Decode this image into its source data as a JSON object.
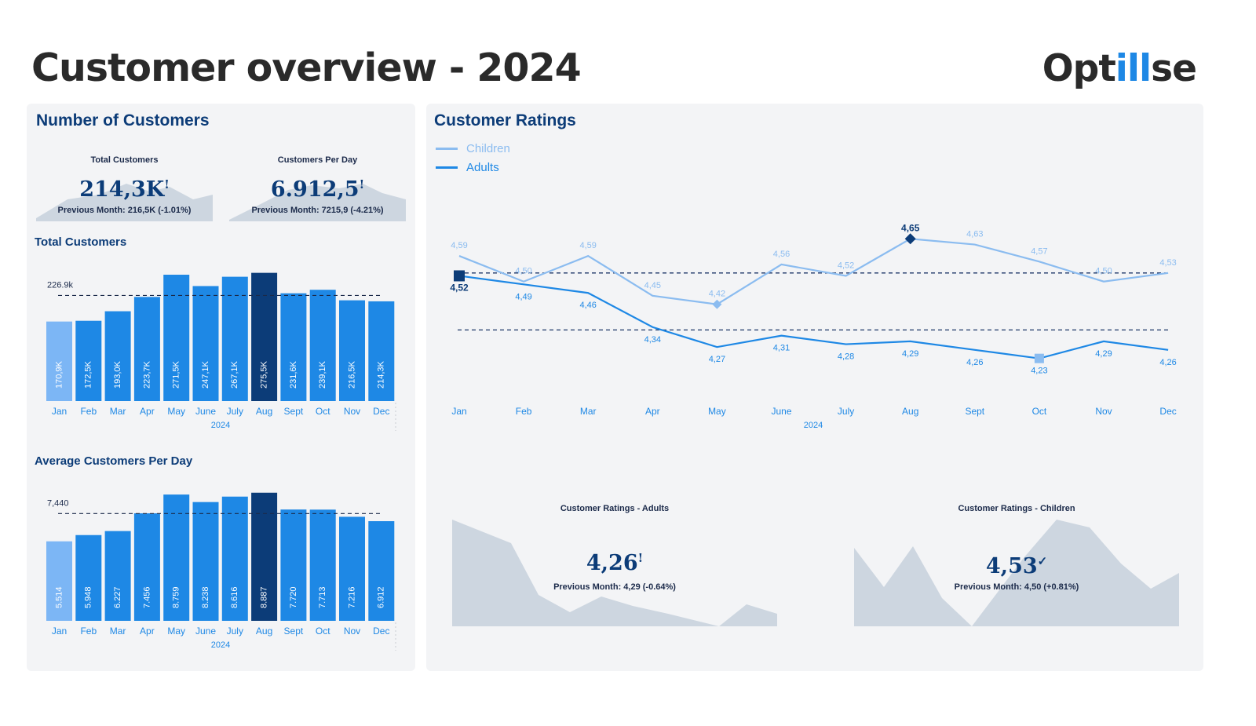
{
  "header": {
    "title": "Customer overview - 2024",
    "logo_left": "Opt",
    "logo_mid": "ill",
    "logo_right": "se"
  },
  "colors": {
    "bar": "#1e88e5",
    "bar_light": "#7cb6f5",
    "bar_highlight": "#0c3c78",
    "children_line": "#8bbcf0",
    "adults_line": "#1e88e5",
    "navy": "#0c3c78",
    "sparkline": "#cdd6e0"
  },
  "left_panel": {
    "title": "Number of Customers",
    "kpis": [
      {
        "label": "Total Customers",
        "value": "214,3K",
        "flag": "!",
        "prev": "Previous Month: 216,5K (-1.01%)"
      },
      {
        "label": "Customers Per Day",
        "value": "6.912,5",
        "flag": "!",
        "prev": "Previous Month: 7215,9 (-4.21%)"
      }
    ],
    "total_title": "Total Customers",
    "avg_title": "Average Customers Per Day"
  },
  "right_panel": {
    "title": "Customer Ratings",
    "legend": [
      "Children",
      "Adults"
    ],
    "kpis": [
      {
        "label": "Customer Ratings - Adults",
        "value": "4,26",
        "flag": "!",
        "prev": "Previous Month: 4,29 (-0.64%)"
      },
      {
        "label": "Customer Ratings - Children",
        "value": "4,53",
        "flag": "✓",
        "prev": "Previous Month: 4,50 (+0.81%)"
      }
    ]
  },
  "chart_data": [
    {
      "type": "bar",
      "title": "Total Customers",
      "xlabel": "2024",
      "categories": [
        "Jan",
        "Feb",
        "Mar",
        "Apr",
        "May",
        "June",
        "July",
        "Aug",
        "Sept",
        "Oct",
        "Nov",
        "Dec"
      ],
      "values": [
        170.9,
        172.5,
        193.0,
        223.7,
        271.5,
        247.1,
        267.1,
        275.5,
        231.6,
        239.1,
        216.5,
        214.3
      ],
      "labels": [
        "170,9K",
        "172,5K",
        "193,0K",
        "223,7K",
        "271,5K",
        "247,1K",
        "267,1K",
        "275,5K",
        "231,6K",
        "239,1K",
        "216,5K",
        "214,3K"
      ],
      "reference_line": {
        "value": 226.9,
        "label": "226.9k"
      },
      "highlight": "Aug",
      "ylim": [
        0,
        285
      ]
    },
    {
      "type": "bar",
      "title": "Average Customers Per Day",
      "xlabel": "2024",
      "categories": [
        "Jan",
        "Feb",
        "Mar",
        "Apr",
        "May",
        "June",
        "July",
        "Aug",
        "Sept",
        "Oct",
        "Nov",
        "Dec"
      ],
      "values": [
        5514,
        5948,
        6227,
        7456,
        8759,
        8238,
        8616,
        8887,
        7720,
        7713,
        7216,
        6912
      ],
      "labels": [
        "5.514",
        "5.948",
        "6.227",
        "7.456",
        "8.759",
        "8.238",
        "8.616",
        "8.887",
        "7.720",
        "7.713",
        "7.216",
        "6.912"
      ],
      "reference_line": {
        "value": 7440,
        "label": "7,440"
      },
      "highlight": "Aug",
      "ylim": [
        0,
        9200
      ]
    },
    {
      "type": "line",
      "title": "Customer Ratings",
      "xlabel": "2024",
      "x": [
        "Jan",
        "Feb",
        "Mar",
        "Apr",
        "May",
        "June",
        "July",
        "Aug",
        "Sept",
        "Oct",
        "Nov",
        "Dec"
      ],
      "series": [
        {
          "name": "Children",
          "values": [
            4.59,
            4.5,
            4.59,
            4.45,
            4.42,
            4.56,
            4.52,
            4.65,
            4.63,
            4.57,
            4.5,
            4.53
          ],
          "labels": [
            "4,59",
            "4,50",
            "4,59",
            "4,45",
            "4,42",
            "4,56",
            "4,52",
            "4,65",
            "4,63",
            "4,57",
            "4,50",
            "4,53"
          ]
        },
        {
          "name": "Adults",
          "values": [
            4.52,
            4.49,
            4.46,
            4.34,
            4.27,
            4.31,
            4.28,
            4.29,
            4.26,
            4.23,
            4.29,
            4.26
          ],
          "labels": [
            "4,52",
            "4,49",
            "4,46",
            "4,34",
            "4,27",
            "4,31",
            "4,28",
            "4,29",
            "4,26",
            "4,23",
            "4,29",
            "4,26"
          ]
        }
      ],
      "reference_lines": [
        4.53,
        4.33
      ],
      "ylim": [
        4.05,
        4.75
      ]
    }
  ]
}
